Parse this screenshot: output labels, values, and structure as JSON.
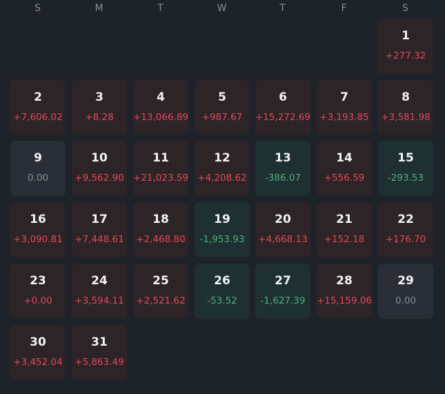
{
  "weekdays": [
    "S",
    "M",
    "T",
    "W",
    "T",
    "F",
    "S"
  ],
  "first_weekday_index": 6,
  "days": [
    {
      "day": "1",
      "pnl": "+277.32",
      "trend": "up"
    },
    {
      "day": "2",
      "pnl": "+7,606.02",
      "trend": "up"
    },
    {
      "day": "3",
      "pnl": "+8.28",
      "trend": "up"
    },
    {
      "day": "4",
      "pnl": "+13,066.89",
      "trend": "up"
    },
    {
      "day": "5",
      "pnl": "+987.67",
      "trend": "up"
    },
    {
      "day": "6",
      "pnl": "+15,272.69",
      "trend": "up"
    },
    {
      "day": "7",
      "pnl": "+3,193.85",
      "trend": "up"
    },
    {
      "day": "8",
      "pnl": "+3,581.98",
      "trend": "up"
    },
    {
      "day": "9",
      "pnl": "0.00",
      "trend": "flat"
    },
    {
      "day": "10",
      "pnl": "+9,562.90",
      "trend": "up"
    },
    {
      "day": "11",
      "pnl": "+21,023.59",
      "trend": "up"
    },
    {
      "day": "12",
      "pnl": "+4,208.62",
      "trend": "up"
    },
    {
      "day": "13",
      "pnl": "-386.07",
      "trend": "down"
    },
    {
      "day": "14",
      "pnl": "+556.59",
      "trend": "up"
    },
    {
      "day": "15",
      "pnl": "-293.53",
      "trend": "down"
    },
    {
      "day": "16",
      "pnl": "+3,090.81",
      "trend": "up"
    },
    {
      "day": "17",
      "pnl": "+7,448.61",
      "trend": "up"
    },
    {
      "day": "18",
      "pnl": "+2,468.80",
      "trend": "up"
    },
    {
      "day": "19",
      "pnl": "-1,953.93",
      "trend": "down"
    },
    {
      "day": "20",
      "pnl": "+4,668.13",
      "trend": "up"
    },
    {
      "day": "21",
      "pnl": "+152.18",
      "trend": "up"
    },
    {
      "day": "22",
      "pnl": "+176.70",
      "trend": "up"
    },
    {
      "day": "23",
      "pnl": "+0.00",
      "trend": "up"
    },
    {
      "day": "24",
      "pnl": "+3,594.11",
      "trend": "up"
    },
    {
      "day": "25",
      "pnl": "+2,521.62",
      "trend": "up"
    },
    {
      "day": "26",
      "pnl": "-53.52",
      "trend": "down"
    },
    {
      "day": "27",
      "pnl": "-1,627.39",
      "trend": "down"
    },
    {
      "day": "28",
      "pnl": "+15,159.06",
      "trend": "up"
    },
    {
      "day": "29",
      "pnl": "0.00",
      "trend": "flat"
    },
    {
      "day": "30",
      "pnl": "+3,452.04",
      "trend": "up"
    },
    {
      "day": "31",
      "pnl": "+5,863.49",
      "trend": "up"
    }
  ],
  "colors": {
    "background": "#1e2229",
    "up_cell": "#2d2428",
    "down_cell": "#1f3032",
    "flat_cell": "#2a2e36",
    "up_text": "#e5485a",
    "down_text": "#4caf7e",
    "flat_text": "#8a8f98"
  }
}
